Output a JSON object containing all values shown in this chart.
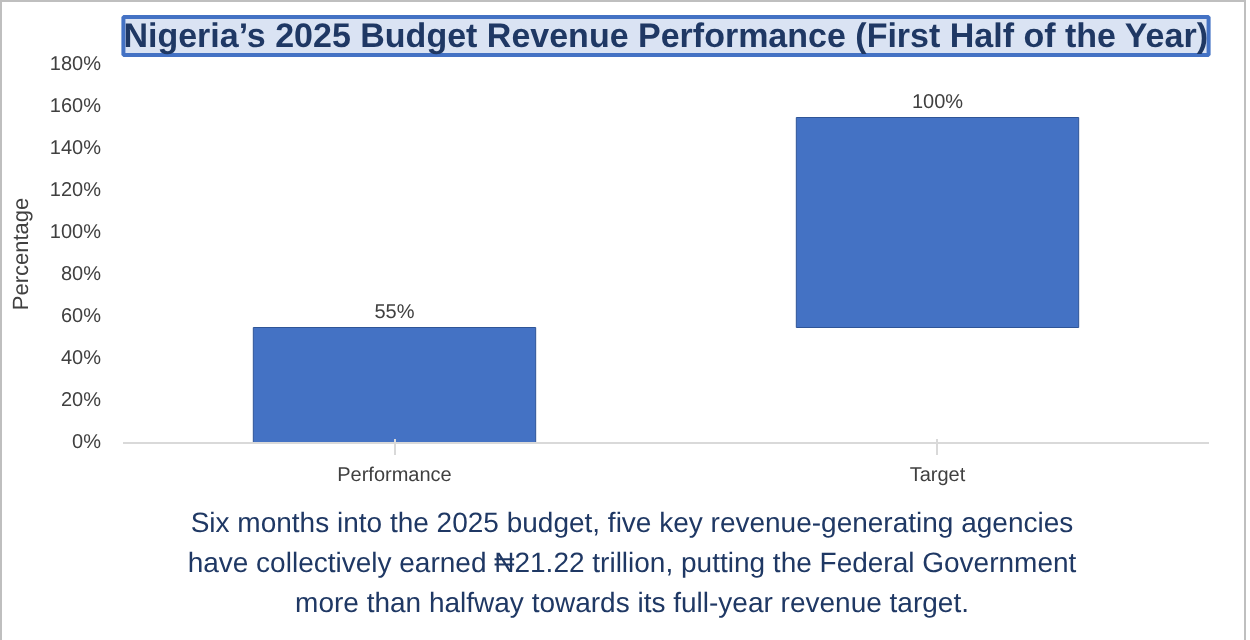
{
  "chart_data": {
    "type": "bar",
    "title": "Nigeria’s 2025 Budget Revenue Performance (First Half of the Year)",
    "ylabel": "Percentage",
    "categories": [
      "Performance",
      "Target"
    ],
    "values": [
      55,
      100
    ],
    "base": [
      0,
      55
    ],
    "value_labels": [
      "55%",
      "100%"
    ],
    "color": "#4472c4",
    "ylim": [
      0,
      180
    ],
    "yticks": [
      {
        "value": 0,
        "label": "0%"
      },
      {
        "value": 20,
        "label": "20%"
      },
      {
        "value": 40,
        "label": "40%"
      },
      {
        "value": 60,
        "label": "60%"
      },
      {
        "value": 80,
        "label": "80%"
      },
      {
        "value": 100,
        "label": "100%"
      },
      {
        "value": 120,
        "label": "120%"
      },
      {
        "value": 140,
        "label": "140%"
      },
      {
        "value": 160,
        "label": "160%"
      },
      {
        "value": 180,
        "label": "180%"
      }
    ],
    "grid": false,
    "annotations": [
      "Six months into the 2025 budget, five key revenue-generating agencies have collectively earned ₦21.22 trillion, putting the Federal Government more than halfway towards its full-year revenue target."
    ]
  }
}
